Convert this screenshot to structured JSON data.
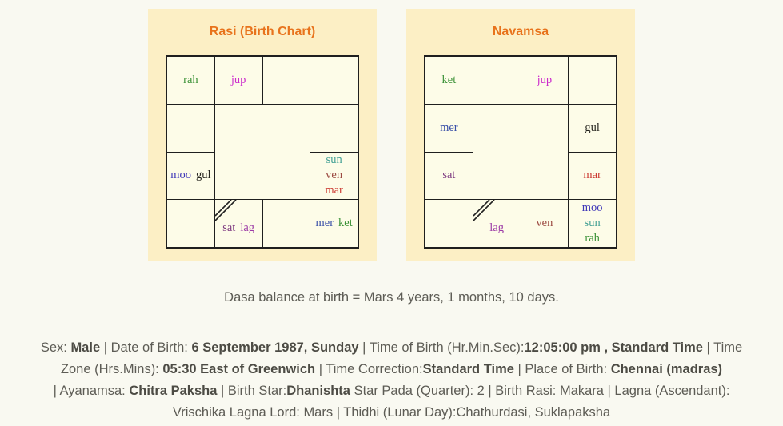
{
  "charts": [
    {
      "title": "Rasi (Birth Chart)",
      "cells": [
        {
          "p": [
            "rah"
          ]
        },
        {
          "p": [
            "jup"
          ]
        },
        {
          "p": []
        },
        {
          "p": []
        },
        {
          "p": []
        },
        {
          "p": []
        },
        {
          "p": [
            "moo",
            "gul"
          ]
        },
        {
          "p": [
            "sun",
            "ven",
            "mar"
          ],
          "stack": true
        },
        {
          "p": []
        },
        {
          "p": [
            "sat",
            "lag"
          ],
          "lagna": true
        },
        {
          "p": []
        },
        {
          "p": [
            "mer",
            "ket"
          ]
        }
      ]
    },
    {
      "title": "Navamsa",
      "cells": [
        {
          "p": [
            "ket"
          ]
        },
        {
          "p": []
        },
        {
          "p": [
            "jup"
          ]
        },
        {
          "p": []
        },
        {
          "p": [
            "mer"
          ]
        },
        {
          "p": [
            "gul"
          ]
        },
        {
          "p": [
            "sat"
          ]
        },
        {
          "p": [
            "mar"
          ]
        },
        {
          "p": []
        },
        {
          "p": [
            "lag"
          ],
          "lagna": true
        },
        {
          "p": [
            "ven"
          ]
        },
        {
          "p": [
            "moo",
            "sun",
            "rah"
          ],
          "stack": true
        }
      ]
    }
  ],
  "planet_colors": {
    "rah": "#3a9136",
    "ket": "#3a9136",
    "jup": "#cc2ccc",
    "moo": "#4038b8",
    "mer": "#3a50a8",
    "gul": "#26251f",
    "sun": "#45a195",
    "ven": "#9c4a42",
    "mar": "#cc3b33",
    "sat": "#7e3a80",
    "lag": "#9c3ba6"
  },
  "dasa_balance": "Dasa balance at birth = Mars 4 years, 1 months, 10 days.",
  "birth_details": {
    "lines": [
      [
        {
          "t": "Sex: "
        },
        {
          "t": "Male",
          "b": true
        },
        {
          "t": " | Date of Birth: "
        },
        {
          "t": "6 September 1987, Sunday",
          "b": true
        },
        {
          "t": " | Time of Birth (Hr.Min.Sec):"
        },
        {
          "t": "12:05:00 pm , Standard Time",
          "b": true
        },
        {
          "t": " | Time"
        }
      ],
      [
        {
          "t": "Zone (Hrs.Mins): "
        },
        {
          "t": "05:30 East of Greenwich",
          "b": true
        },
        {
          "t": " | Time Correction:"
        },
        {
          "t": "Standard Time",
          "b": true
        },
        {
          "t": " | Place of Birth: "
        },
        {
          "t": "Chennai (madras)",
          "b": true
        }
      ],
      [
        {
          "t": "| Ayanamsa: "
        },
        {
          "t": "Chitra Paksha",
          "b": true
        },
        {
          "t": " | Birth Star:"
        },
        {
          "t": "Dhanishta",
          "b": true
        },
        {
          "t": " Star Pada (Quarter): 2 | Birth Rasi: Makara | Lagna (Ascendant):"
        }
      ],
      [
        {
          "t": "Vrischika Lagna Lord: Mars | Thidhi (Lunar Day):Chathurdasi, Suklapaksha"
        }
      ]
    ]
  },
  "colors": {
    "accent_orange": "#e8731c",
    "panel_bg": "#fcefc5",
    "cell_bg": "#fdfce8",
    "page_bg": "#f9f9f1",
    "grid_line": "#1f1f1f",
    "text": "#5d5c55",
    "text_bold": "#4c4b44"
  }
}
